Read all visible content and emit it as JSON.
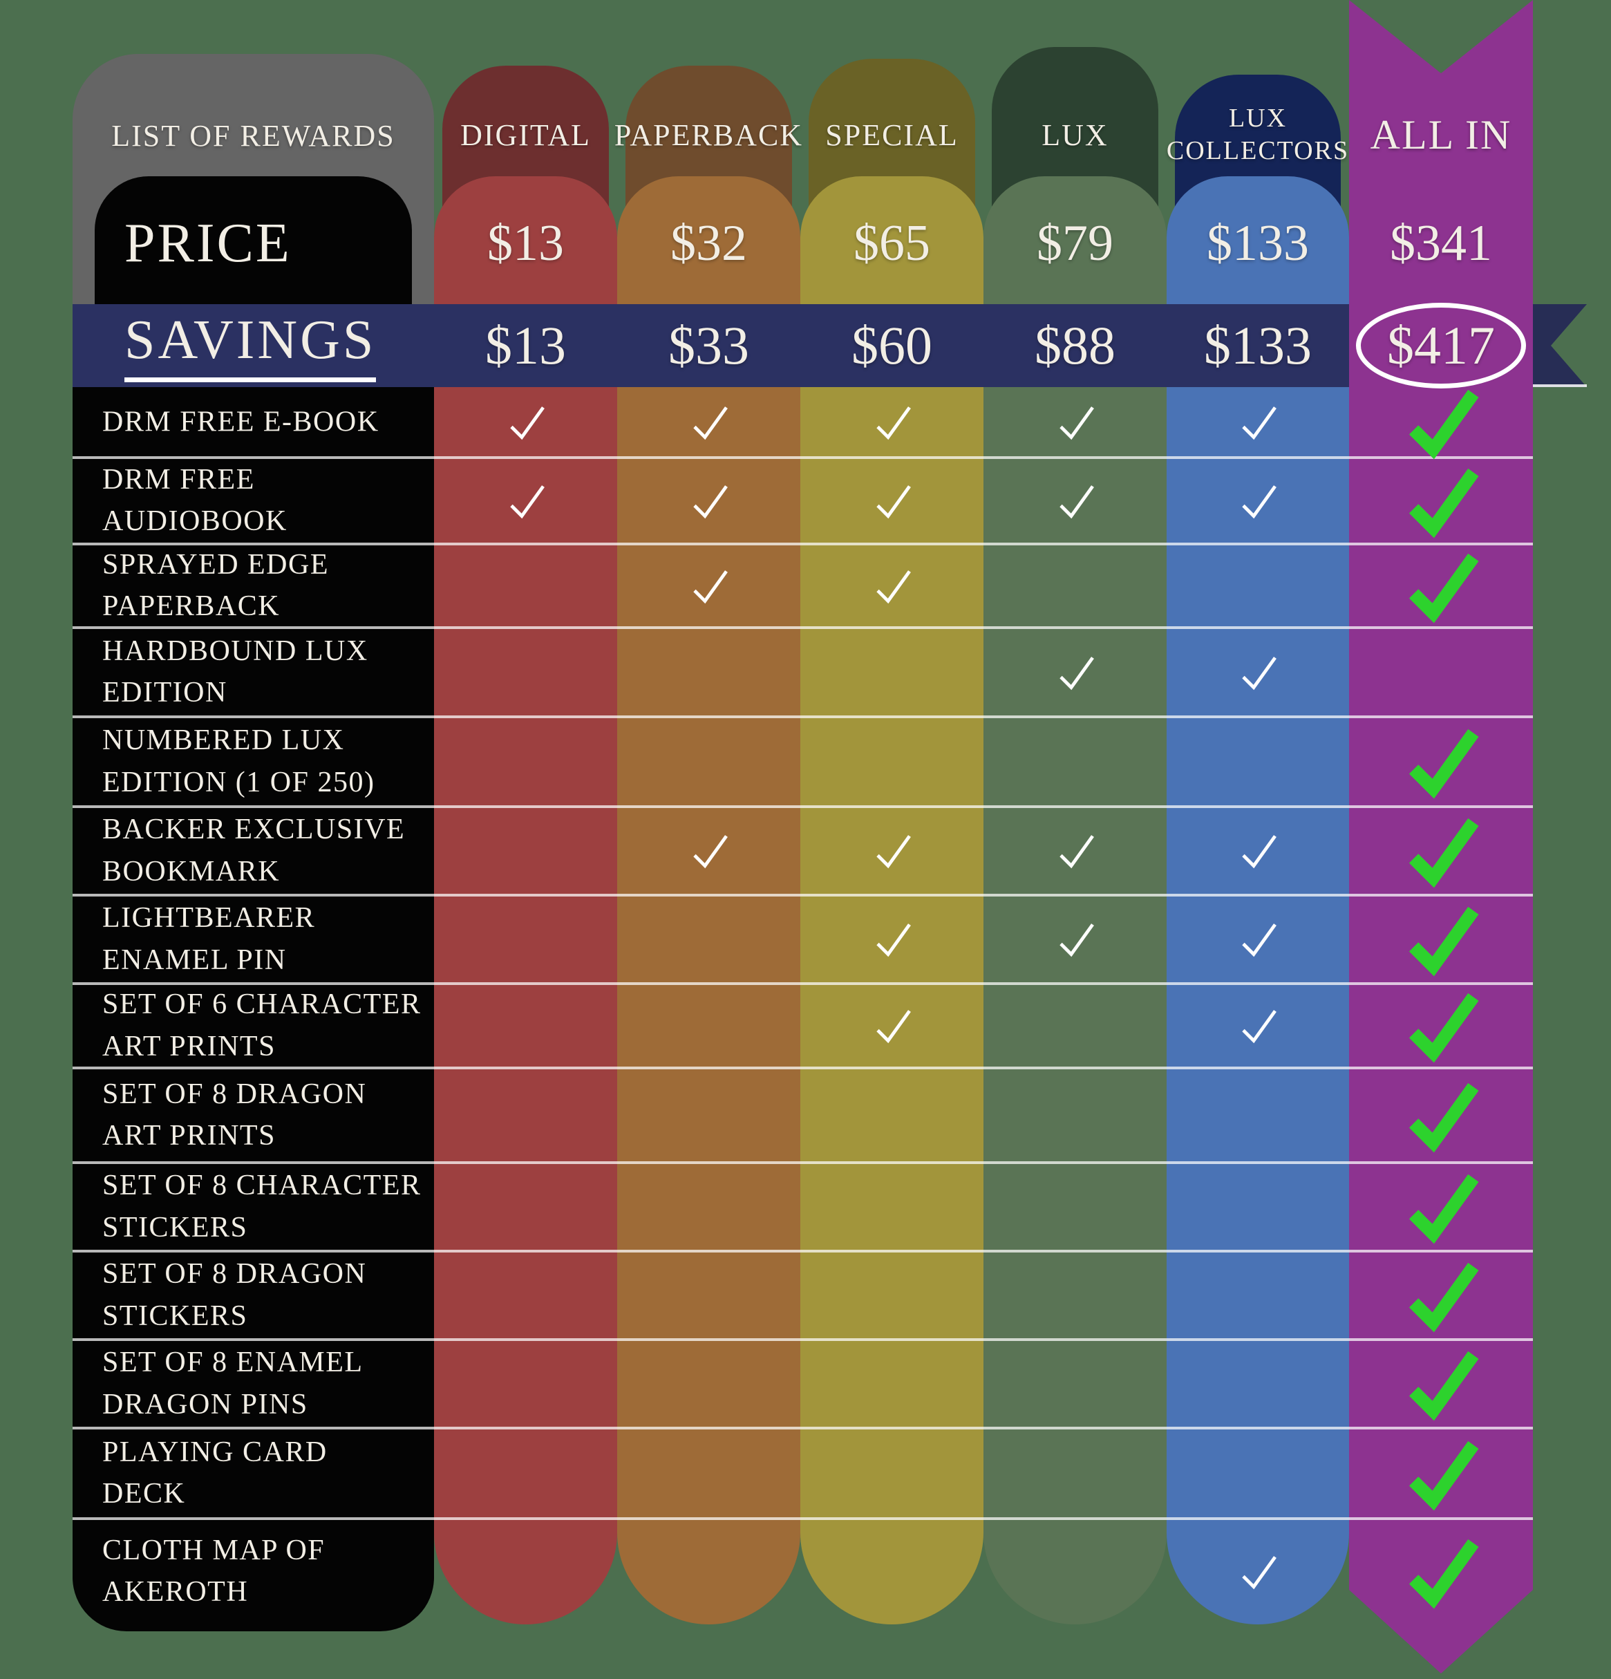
{
  "chart_data": {
    "type": "table",
    "title": "LIST OF REWARDS",
    "price_label": "PRICE",
    "savings_label": "SAVINGS",
    "columns": [
      {
        "id": "digital",
        "label_lines": [
          "DIGITAL"
        ],
        "price": "$13",
        "savings": "$13",
        "header_color": "#6d2f2f",
        "body_color": "#9d4040"
      },
      {
        "id": "paperback",
        "label_lines": [
          "PAPERBACK"
        ],
        "price": "$32",
        "savings": "$33",
        "header_color": "#6f4c2d",
        "body_color": "#9e6b37"
      },
      {
        "id": "special",
        "label_lines": [
          "SPECIAL"
        ],
        "price": "$65",
        "savings": "$60",
        "header_color": "#6a6226",
        "body_color": "#a2953b"
      },
      {
        "id": "lux",
        "label_lines": [
          "LUX"
        ],
        "price": "$79",
        "savings": "$88",
        "header_color": "#2c4231",
        "body_color": "#5a7455"
      },
      {
        "id": "lux-collectors",
        "label_lines": [
          "LUX",
          "COLLECTORS"
        ],
        "price": "$133",
        "savings": "$133",
        "header_color": "#142457",
        "body_color": "#4a73b5"
      },
      {
        "id": "all-in",
        "label_lines": [
          "ALL IN"
        ],
        "price": "$341",
        "savings": "$417",
        "savings_circled": true,
        "header_color": "#8d3390",
        "body_color": "#8d3390"
      }
    ],
    "rows": [
      {
        "label_lines": [
          "DRM FREE E-BOOK"
        ],
        "checks": [
          1,
          1,
          1,
          1,
          1,
          1
        ]
      },
      {
        "label_lines": [
          "DRM FREE",
          "AUDIOBOOK"
        ],
        "checks": [
          1,
          1,
          1,
          1,
          1,
          1
        ]
      },
      {
        "label_lines": [
          "SPRAYED EDGE",
          "PAPERBACK"
        ],
        "checks": [
          0,
          1,
          1,
          0,
          0,
          1
        ]
      },
      {
        "label_lines": [
          "HARDBOUND LUX",
          "EDITION"
        ],
        "checks": [
          0,
          0,
          0,
          1,
          1,
          0
        ]
      },
      {
        "label_lines": [
          "NUMBERED LUX",
          "EDITION (1 OF 250)"
        ],
        "checks": [
          0,
          0,
          0,
          0,
          0,
          1
        ]
      },
      {
        "label_lines": [
          "BACKER EXCLUSIVE",
          "BOOKMARK"
        ],
        "checks": [
          0,
          1,
          1,
          1,
          1,
          1
        ]
      },
      {
        "label_lines": [
          "LIGHTBEARER",
          "ENAMEL PIN"
        ],
        "checks": [
          0,
          0,
          1,
          1,
          1,
          1
        ]
      },
      {
        "label_lines": [
          "SET OF 6 CHARACTER",
          "ART PRINTS"
        ],
        "checks": [
          0,
          0,
          1,
          0,
          1,
          1
        ]
      },
      {
        "label_lines": [
          "SET OF 8 DRAGON",
          "ART PRINTS"
        ],
        "checks": [
          0,
          0,
          0,
          0,
          0,
          1
        ]
      },
      {
        "label_lines": [
          "SET OF 8 CHARACTER",
          "STICKERS"
        ],
        "checks": [
          0,
          0,
          0,
          0,
          0,
          1
        ]
      },
      {
        "label_lines": [
          "SET OF 8 DRAGON",
          "STICKERS"
        ],
        "checks": [
          0,
          0,
          0,
          0,
          0,
          1
        ]
      },
      {
        "label_lines": [
          "SET OF 8 ENAMEL",
          "DRAGON PINS"
        ],
        "checks": [
          0,
          0,
          0,
          0,
          0,
          1
        ]
      },
      {
        "label_lines": [
          "PLAYING CARD",
          "DECK"
        ],
        "checks": [
          0,
          0,
          0,
          0,
          0,
          1
        ]
      },
      {
        "label_lines": [
          "CLOTH MAP OF",
          "AKEROTH"
        ],
        "checks": [
          0,
          0,
          0,
          0,
          1,
          1
        ]
      }
    ]
  },
  "colors": {
    "background": "#4c6f4f",
    "rewards_header_gray": "#656565",
    "label_column_black": "#040404",
    "savings_banner_navy": "#2b3162",
    "banner_tail_navy": "#272d55",
    "ribbon_purple": "#8d3390",
    "text_white": "#f2eee5",
    "check_white": "#ffffff",
    "check_green": "#2dd22d",
    "row_separator": "rgba(255,255,255,0.72)"
  }
}
